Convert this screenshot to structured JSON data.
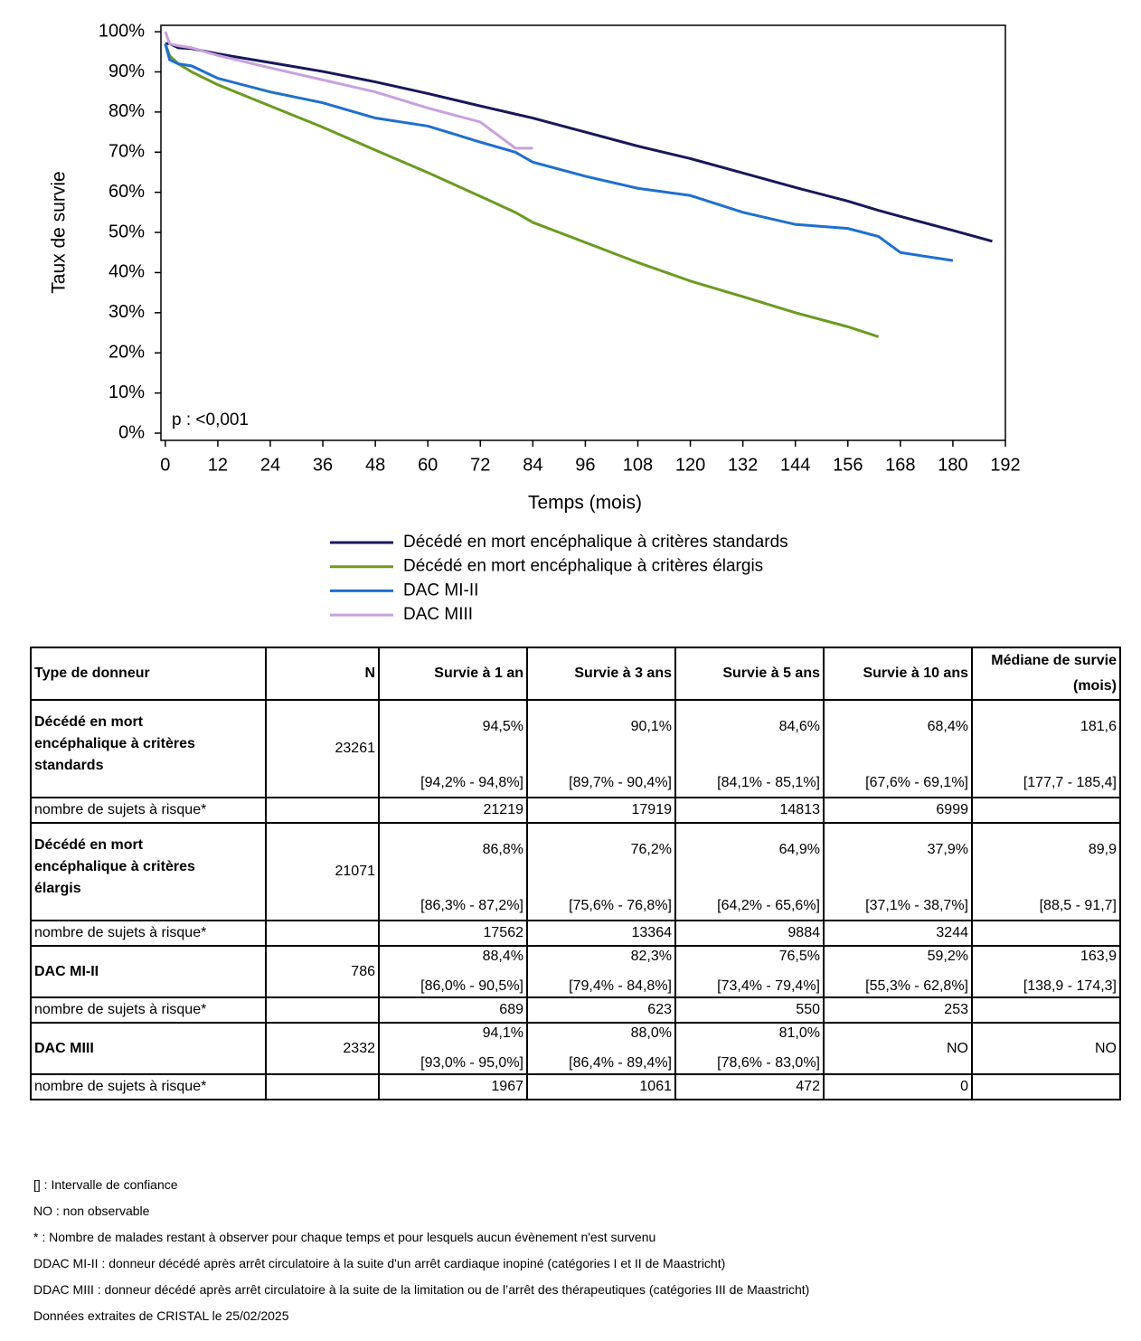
{
  "chart_data": {
    "type": "line",
    "y_label": "Taux de survie",
    "x_label": "Temps (mois)",
    "annotation": "p : <0,001",
    "x": [
      0,
      1,
      3,
      6,
      12,
      24,
      36,
      48,
      60,
      72,
      80,
      84,
      96,
      108,
      120,
      132,
      144,
      156,
      163,
      168,
      180,
      189
    ],
    "series": [
      {
        "name": "Décédé en mort encéphalique à critères standards",
        "color": "#17175a",
        "values": [
          97,
          97,
          96,
          95.8,
          94.5,
          92.3,
          90.1,
          87.5,
          84.6,
          81.5,
          79.5,
          78.5,
          75,
          71.5,
          68.4,
          64.8,
          61.2,
          57.8,
          55.5,
          54,
          50.5,
          47.8
        ]
      },
      {
        "name": "Décédé en mort encéphalique à critères élargis",
        "color": "#6b9a22",
        "values": [
          97,
          94,
          92,
          90,
          86.8,
          81.5,
          76.2,
          70.5,
          64.9,
          59,
          55,
          52.5,
          47.5,
          42.5,
          37.9,
          34,
          30,
          26.5,
          24,
          null,
          null,
          null
        ]
      },
      {
        "name": "DAC MI-II",
        "color": "#1f6fd0",
        "values": [
          97,
          93,
          92,
          91.5,
          88.4,
          85,
          82.3,
          78.5,
          76.5,
          72.5,
          70,
          67.5,
          64,
          61,
          59.2,
          55,
          52,
          51,
          49,
          45,
          43,
          null
        ]
      },
      {
        "name": "DAC MIII",
        "color": "#c9a0dc",
        "values": [
          100,
          97,
          96.5,
          96,
          94.1,
          91,
          88,
          85,
          81,
          77.5,
          71,
          71,
          null,
          null,
          null,
          null,
          null,
          null,
          null,
          null,
          null,
          null
        ]
      }
    ],
    "xlim": [
      -1,
      192
    ],
    "ylim": [
      -1.8,
      101.6
    ],
    "xticks": [
      0,
      12,
      24,
      36,
      48,
      60,
      72,
      84,
      96,
      108,
      120,
      132,
      144,
      156,
      168,
      180,
      192
    ],
    "yticks": [
      {
        "value": 0,
        "label": "0%"
      },
      {
        "value": 10,
        "label": "10%"
      },
      {
        "value": 20,
        "label": "20%"
      },
      {
        "value": 30,
        "label": "30%"
      },
      {
        "value": 40,
        "label": "40%"
      },
      {
        "value": 50,
        "label": "50%"
      },
      {
        "value": 60,
        "label": "60%"
      },
      {
        "value": 70,
        "label": "70%"
      },
      {
        "value": 80,
        "label": "80%"
      },
      {
        "value": 90,
        "label": "90%"
      },
      {
        "value": 100,
        "label": "100%"
      }
    ],
    "grid": false
  },
  "table": {
    "header": [
      "Type de donneur",
      "N",
      "Survie à 1 an",
      "Survie à 3 ans",
      "Survie à 5 ans",
      "Survie à 10 ans",
      "Médiane de survie (mois)"
    ],
    "risk_label": "nombre de sujets à risque*",
    "groups": [
      {
        "name": "Décédé en mort encéphalique à critères standards",
        "n": 23261,
        "tall": true,
        "cells": [
          {
            "value": "94,5%",
            "ci": "[94,2% - 94,8%]"
          },
          {
            "value": "90,1%",
            "ci": "[89,7% - 90,4%]"
          },
          {
            "value": "84,6%",
            "ci": "[84,1% - 85,1%]"
          },
          {
            "value": "68,4%",
            "ci": "[67,6% - 69,1%]"
          },
          {
            "value": "181,6",
            "ci": "[177,7 - 185,4]"
          }
        ],
        "risk": [
          21219,
          17919,
          14813,
          6999
        ]
      },
      {
        "name": "Décédé en mort encéphalique à critères élargis",
        "n": 21071,
        "tall": true,
        "cells": [
          {
            "value": "86,8%",
            "ci": "[86,3% - 87,2%]"
          },
          {
            "value": "76,2%",
            "ci": "[75,6% - 76,8%]"
          },
          {
            "value": "64,9%",
            "ci": "[64,2% - 65,6%]"
          },
          {
            "value": "37,9%",
            "ci": "[37,1% - 38,7%]"
          },
          {
            "value": "89,9",
            "ci": "[88,5 - 91,7]"
          }
        ],
        "risk": [
          17562,
          13364,
          9884,
          3244
        ]
      },
      {
        "name": "DAC MI-II",
        "n": 786,
        "tall": false,
        "cells": [
          {
            "value": "88,4%",
            "ci": "[86,0% - 90,5%]"
          },
          {
            "value": "82,3%",
            "ci": "[79,4% - 84,8%]"
          },
          {
            "value": "76,5%",
            "ci": "[73,4% - 79,4%]"
          },
          {
            "value": "59,2%",
            "ci": "[55,3% - 62,8%]"
          },
          {
            "value": "163,9",
            "ci": "[138,9 - 174,3]"
          }
        ],
        "risk": [
          689,
          623,
          550,
          253
        ]
      },
      {
        "name": "DAC MIII",
        "n": 2332,
        "tall": false,
        "cells": [
          {
            "value": "94,1%",
            "ci": "[93,0% - 95,0%]"
          },
          {
            "value": "88,0%",
            "ci": "[86,4% - 89,4%]"
          },
          {
            "value": "81,0%",
            "ci": "[78,6% - 83,0%]"
          },
          {
            "value": "NO"
          },
          {
            "value": "NO"
          }
        ],
        "risk": [
          1967,
          1061,
          472,
          0
        ]
      }
    ]
  },
  "footnotes": [
    "[] : Intervalle de confiance",
    "NO : non observable",
    "* : Nombre de malades restant à observer pour chaque temps et pour lesquels aucun évènement n'est survenu",
    "DDAC MI-II : donneur décédé après arrêt circulatoire à la suite d'un arrêt cardiaque inopiné (catégories I et II de Maastricht)",
    "DDAC MIII : donneur décédé après arrêt circulatoire à la suite de la limitation ou de l’arrêt des thérapeutiques (catégories III de Maastricht)",
    "Données extraites de CRISTAL le 25/02/2025"
  ]
}
